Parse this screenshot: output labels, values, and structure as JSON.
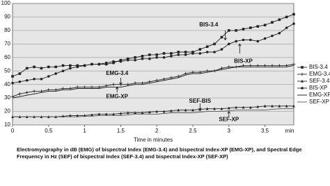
{
  "chart_data": {
    "type": "line",
    "x_label": "Time in minutes",
    "x_unit": "min",
    "x": [
      0,
      0.1,
      0.2,
      0.3,
      0.4,
      0.5,
      0.6,
      0.7,
      0.8,
      0.9,
      1,
      1.1,
      1.2,
      1.3,
      1.4,
      1.5,
      1.6,
      1.7,
      1.8,
      1.9,
      2,
      2.1,
      2.2,
      2.3,
      2.4,
      2.5,
      2.6,
      2.7,
      2.8,
      2.9,
      3,
      3.1,
      3.2,
      3.3,
      3.4,
      3.5,
      3.6,
      3.7,
      3.8,
      3.9
    ],
    "xlim": [
      0,
      3.9
    ],
    "xticks": [
      0,
      0.5,
      1,
      1.5,
      2,
      2.5,
      3,
      3.5
    ],
    "ylim": [
      10,
      100
    ],
    "yticks": [
      10,
      20,
      30,
      40,
      50,
      60,
      70,
      80,
      90,
      100
    ],
    "grid": true,
    "series": [
      {
        "name": "BIS-3.4",
        "color": "#222222",
        "marker": "square",
        "values": [
          46,
          48,
          52,
          53,
          52,
          53,
          53,
          54,
          54,
          54,
          54,
          55,
          55,
          55,
          56,
          58,
          59,
          60,
          61,
          62,
          62,
          63,
          63,
          64,
          64,
          64,
          66,
          68,
          70,
          75,
          80,
          80,
          81,
          82,
          83,
          84,
          86,
          88,
          90,
          92
        ]
      },
      {
        "name": "EMG-3.4",
        "color": "#222222",
        "marker": "plus",
        "values": [
          31,
          33,
          34,
          35,
          35,
          36,
          36,
          37,
          37,
          38,
          38,
          38,
          38,
          39,
          40,
          40,
          40,
          41,
          41,
          42,
          43,
          44,
          45,
          46,
          48,
          49,
          49,
          50,
          50,
          52,
          53,
          53,
          54,
          54,
          54,
          54,
          54,
          54,
          54,
          55
        ]
      },
      {
        "name": "SEF-3.4",
        "color": "#222222",
        "marker": "triangle",
        "values": [
          16,
          16,
          16,
          16,
          16,
          16,
          16,
          16.5,
          17,
          17,
          17,
          17.5,
          18,
          18,
          18,
          18.5,
          19,
          19,
          19,
          19.5,
          20,
          20,
          20.5,
          21,
          21,
          21,
          21.5,
          22,
          22,
          22,
          22.5,
          23,
          23,
          23,
          23.5,
          24,
          24,
          24,
          24,
          24
        ]
      },
      {
        "name": "BIS-XP",
        "color": "#222222",
        "marker": "circle",
        "values": [
          41,
          42,
          43,
          44,
          44,
          46,
          48,
          50,
          52,
          53,
          54,
          55,
          55,
          56,
          57,
          57,
          58,
          58,
          59,
          59,
          60,
          60,
          61,
          62,
          62,
          63,
          63,
          64,
          64,
          66,
          70,
          72,
          73,
          73,
          72,
          74,
          76,
          78,
          82,
          85
        ]
      },
      {
        "name": "EMG-XP",
        "color": "#111111",
        "values": [
          30,
          31,
          32,
          33,
          34,
          35,
          35,
          36,
          36,
          37,
          37,
          37,
          37,
          38,
          38,
          38,
          39,
          40,
          40,
          41,
          42,
          43,
          44,
          45,
          47,
          48,
          48,
          49,
          50,
          51,
          52,
          53,
          53,
          53,
          53,
          53,
          53,
          53,
          53,
          54
        ]
      },
      {
        "name": "SEF-XP",
        "color": "#555555",
        "values": [
          16,
          16,
          16,
          16,
          16,
          16,
          16,
          16,
          16,
          16,
          16.5,
          16.5,
          17,
          17,
          17,
          17,
          17.5,
          18,
          18,
          18,
          18,
          18.5,
          19,
          19,
          19,
          19,
          19.5,
          20,
          20,
          20,
          20.5,
          21,
          21,
          21,
          21,
          21,
          21.5,
          22,
          22,
          22
        ]
      }
    ],
    "annotations": [
      {
        "text": "BIS-3.4"
      },
      {
        "text": "BIS-XP"
      },
      {
        "text": "EMG-3.4"
      },
      {
        "text": "EMG-XP"
      },
      {
        "text": "SEF-BIS"
      },
      {
        "text": "SEF-XP"
      }
    ],
    "legend_position": "right"
  },
  "caption": [
    "Electromyography in dB (EMG) of bispectral Index (EMG-3.4) and bispectral Index-XP (EMG-XP), and Spectral Edge",
    "Frequency in Hz (SEF) of bispectral Index (SEF-3.4) and bispectral Index-XP (SEF-XP)"
  ]
}
